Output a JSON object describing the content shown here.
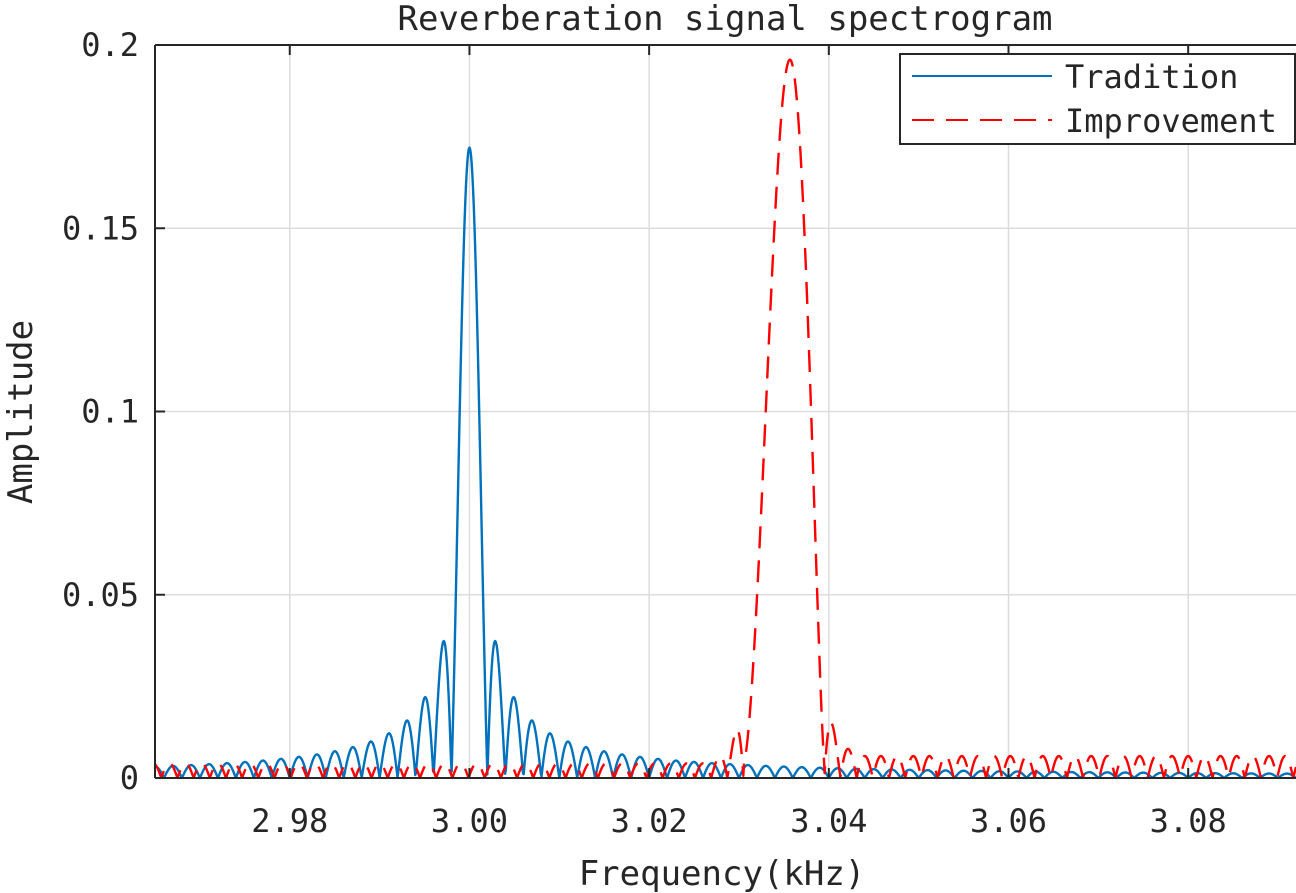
{
  "chart_data": {
    "type": "line",
    "title": "Reverberation signal spectrogram",
    "xlabel": "Frequency(kHz)",
    "ylabel": "Amplitude",
    "xlim": [
      2.965,
      3.092
    ],
    "ylim": [
      0,
      0.2
    ],
    "grid": true,
    "legend_position": "top-right",
    "xticks": [
      2.98,
      3.0,
      3.02,
      3.04,
      3.06,
      3.08
    ],
    "xtick_labels": [
      "2.98",
      "3.00",
      "3.02",
      "3.04",
      "3.06",
      "3.08"
    ],
    "yticks": [
      0,
      0.05,
      0.1,
      0.15,
      0.2
    ],
    "ytick_labels": [
      "0",
      "0.05",
      "0.1",
      "0.15",
      "0.2"
    ],
    "series": [
      {
        "name": "Tradition",
        "color": "#0072BD",
        "style": "solid",
        "model": {
          "kind": "sinc",
          "center": 3.0,
          "peak": 0.172,
          "null_spacing": 0.002,
          "noise_floor": 0.0
        }
      },
      {
        "name": "Improvement",
        "color": "#FF0000",
        "style": "dashed",
        "model": {
          "kind": "band",
          "center": 3.0355,
          "peak": 0.192,
          "band_low": 3.0305,
          "band_high": 3.0395,
          "sidelobe_left": 0.004,
          "sidelobe_right": 0.006,
          "edge_spike": 0.018
        }
      }
    ]
  }
}
